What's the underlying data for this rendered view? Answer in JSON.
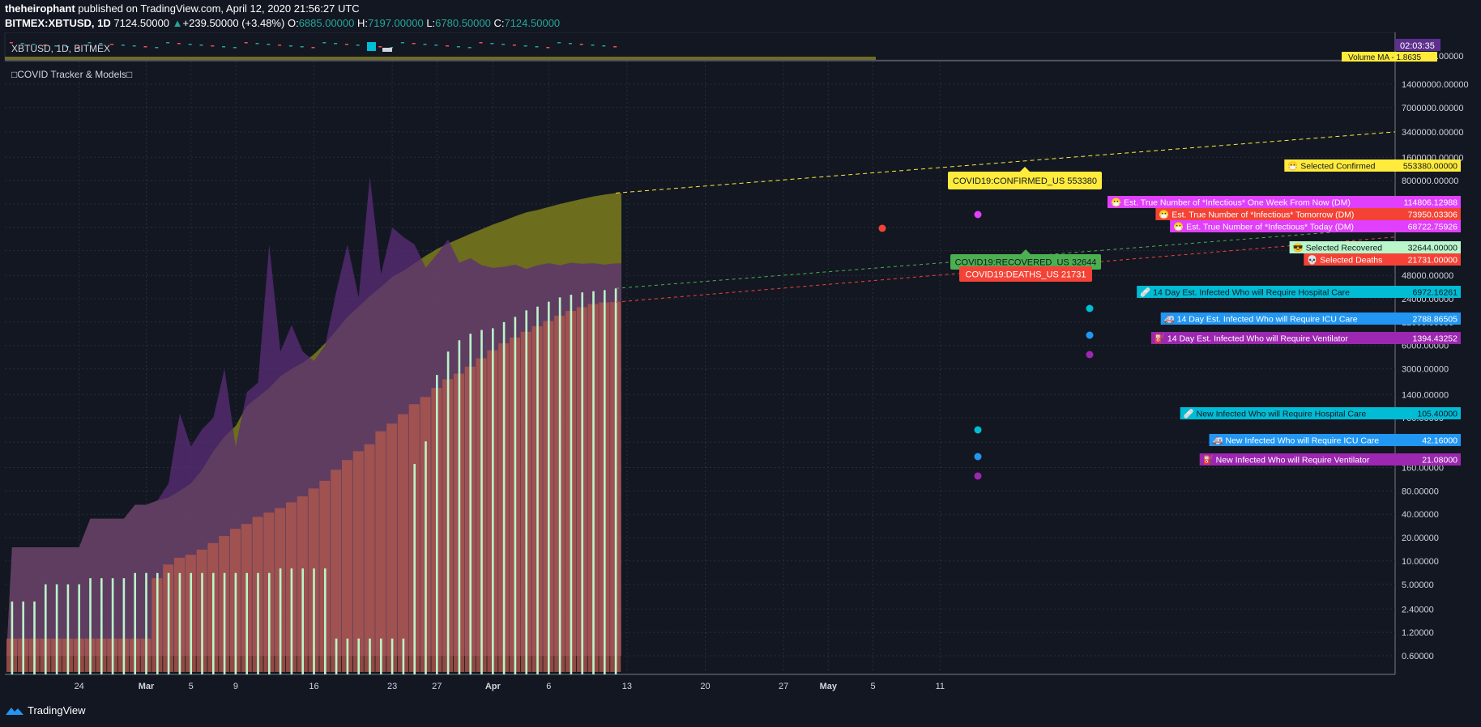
{
  "header": {
    "author": "theheirophant",
    "published": "published on TradingView.com, April 12, 2020 21:56:27 UTC",
    "symbol": "BITMEX:XBTUSD, 1D",
    "price": "7124.50000",
    "change": "+239.50000 (+3.48%)",
    "o_label": "O:",
    "o": "6885.00000",
    "h_label": "H:",
    "h": "7197.00000",
    "l_label": "L:",
    "l": "6780.50000",
    "c_label": "C:",
    "c": "7124.50000"
  },
  "main_pane": {
    "title": "XBTUSD, 1D, BITMEX",
    "time_badge": "02:03:35",
    "volume_badge": "Volume MA - 1.8635",
    "axis_top": "2000000.00000"
  },
  "indicator_pane": {
    "title": "COVID Tracker & Models",
    "y_ticks": [
      "14000000.00000",
      "7000000.00000",
      "3400000.00000",
      "1600000.00000",
      "800000.00000",
      "400000.00000",
      "200000.00000",
      "100000.00000",
      "48000.00000",
      "24000.00000",
      "12000.00000",
      "6000.00000",
      "3000.00000",
      "1400.00000",
      "700.00000",
      "340.00000",
      "160.00000",
      "80.00000",
      "40.00000",
      "20.00000",
      "10.00000",
      "5.00000",
      "2.40000",
      "1.20000",
      "0.60000"
    ]
  },
  "x_axis": {
    "ticks": [
      "24",
      "Mar",
      "5",
      "9",
      "16",
      "23",
      "27",
      "Apr",
      "6",
      "13",
      "20",
      "27",
      "May",
      "5",
      "11"
    ],
    "bold": [
      "Mar",
      "Apr",
      "May"
    ]
  },
  "callouts": [
    {
      "text": "COVID19:CONFIRMED_US 553380",
      "color": "#ffeb3b",
      "text_color": "#131722"
    },
    {
      "text": "COVID19:RECOVERED_US 32644",
      "color": "#4caf50",
      "text_color": "#131722"
    },
    {
      "text": "COVID19:DEATHS_US 21731",
      "color": "#f44336",
      "text_color": "#ffffff"
    }
  ],
  "right_labels": [
    {
      "icon": "😷",
      "text": "Selected Confirmed",
      "value": "553380.00000",
      "color": "#ffeb3b",
      "text_color": "#131722"
    },
    {
      "icon": "😷",
      "text": "Est. True Number of *Infectious* One Week From Now (DM)",
      "value": "114806.12988",
      "color": "#e040fb",
      "text_color": "#ffffff"
    },
    {
      "icon": "😷",
      "text": "Est. True Number of *Infectious* Tomorrow (DM)",
      "value": "73950.03306",
      "color": "#f44336",
      "text_color": "#ffffff"
    },
    {
      "icon": "😷",
      "text": "Est. True Number of *Infectious* Today (DM)",
      "value": "68722.75926",
      "color": "#e040fb",
      "text_color": "#ffffff"
    },
    {
      "icon": "😎",
      "text": "Selected Recovered",
      "value": "32644.00000",
      "color": "#b9f6ca",
      "text_color": "#131722"
    },
    {
      "icon": "💀",
      "text": "Selected Deaths",
      "value": "21731.00000",
      "color": "#f44336",
      "text_color": "#ffffff"
    },
    {
      "icon": "🩹",
      "text": "14 Day Est. Infected Who will Require Hospital Care",
      "value": "6972.16261",
      "color": "#00bcd4",
      "text_color": "#131722"
    },
    {
      "icon": "🚑",
      "text": "14 Day Est. Infected Who will Require ICU Care",
      "value": "2788.86505",
      "color": "#2196f3",
      "text_color": "#ffffff"
    },
    {
      "icon": "⛽",
      "text": "14 Day Est. Infected Who will Require Ventilator",
      "value": "1394.43252",
      "color": "#9c27b0",
      "text_color": "#ffffff"
    },
    {
      "icon": "🩹",
      "text": "New Infected Who will Require Hospital Care",
      "value": "105.40000",
      "color": "#00bcd4",
      "text_color": "#131722"
    },
    {
      "icon": "🚑",
      "text": "New Infected Who will Require ICU Care",
      "value": "42.16000",
      "color": "#2196f3",
      "text_color": "#ffffff"
    },
    {
      "icon": "⛽",
      "text": "New Infected Who will Require Ventilator",
      "value": "21.08000",
      "color": "#9c27b0",
      "text_color": "#ffffff"
    }
  ],
  "footer": {
    "brand": "TradingView"
  },
  "colors": {
    "background": "#131722",
    "confirmed": "#7c7d1c",
    "deaths": "#b0584c",
    "recovered": "#b9f6ca",
    "infectious": "#5b2e78",
    "grid": "#2a2e39",
    "axis_text": "#d1d4dc"
  },
  "chart_data": {
    "type": "area",
    "scale": "log",
    "x_dates": [
      "Feb 18",
      "Feb 19",
      "Feb 20",
      "Feb 21",
      "Feb 22",
      "Feb 23",
      "Feb 24",
      "Feb 25",
      "Feb 26",
      "Feb 27",
      "Feb 28",
      "Feb 29",
      "Mar 1",
      "Mar 2",
      "Mar 3",
      "Mar 4",
      "Mar 5",
      "Mar 6",
      "Mar 7",
      "Mar 8",
      "Mar 9",
      "Mar 10",
      "Mar 11",
      "Mar 12",
      "Mar 13",
      "Mar 14",
      "Mar 15",
      "Mar 16",
      "Mar 17",
      "Mar 18",
      "Mar 19",
      "Mar 20",
      "Mar 21",
      "Mar 22",
      "Mar 23",
      "Mar 24",
      "Mar 25",
      "Mar 26",
      "Mar 27",
      "Mar 28",
      "Mar 29",
      "Mar 30",
      "Mar 31",
      "Apr 1",
      "Apr 2",
      "Apr 3",
      "Apr 4",
      "Apr 5",
      "Apr 6",
      "Apr 7",
      "Apr 8",
      "Apr 9",
      "Apr 10",
      "Apr 11",
      "Apr 12"
    ],
    "series": [
      {
        "name": "COVID19:CONFIRMED_US",
        "values": [
          15,
          15,
          15,
          15,
          15,
          15,
          15,
          35,
          35,
          35,
          35,
          53,
          53,
          60,
          66,
          80,
          100,
          150,
          260,
          400,
          550,
          1000,
          1300,
          1700,
          2400,
          3000,
          3600,
          4600,
          6400,
          9400,
          14000,
          19000,
          26000,
          34000,
          46000,
          55000,
          69000,
          86000,
          105000,
          124000,
          143000,
          165000,
          189000,
          217000,
          244000,
          278000,
          312000,
          335000,
          366000,
          399000,
          432000,
          466000,
          501000,
          528000,
          553380
        ]
      },
      {
        "name": "COVID19:DEATHS_US",
        "values": [
          1,
          1,
          1,
          1,
          1,
          1,
          1,
          1,
          1,
          1,
          1,
          1,
          1,
          6,
          9,
          11,
          12,
          14,
          17,
          21,
          26,
          30,
          37,
          42,
          48,
          57,
          68,
          86,
          108,
          150,
          200,
          260,
          320,
          470,
          590,
          780,
          1050,
          1300,
          1700,
          2200,
          2600,
          3200,
          4100,
          5200,
          6400,
          7600,
          9000,
          10600,
          12400,
          14500,
          16700,
          18700,
          20500,
          21500,
          21731
        ]
      },
      {
        "name": "COVID19:RECOVERED_US",
        "values": [
          3,
          3,
          3,
          5,
          5,
          5,
          5,
          6,
          6,
          6,
          6,
          7,
          7,
          7,
          7,
          7,
          7,
          7,
          7,
          7,
          7,
          7,
          7,
          7,
          8,
          8,
          8,
          8,
          8,
          1,
          1,
          1,
          1,
          1,
          1,
          1,
          178,
          348,
          2500,
          5000,
          7000,
          8500,
          9500,
          10000,
          12000,
          14000,
          17000,
          19000,
          22000,
          25000,
          27000,
          29000,
          30000,
          31000,
          32644
        ]
      },
      {
        "name": "Est. True Number of *Infectious* Today (DM)",
        "values": [
          15,
          15,
          15,
          15,
          15,
          15,
          15,
          35,
          35,
          35,
          35,
          53,
          53,
          60,
          100,
          800,
          300,
          500,
          700,
          3000,
          300,
          1500,
          2000,
          120000,
          5000,
          11000,
          5000,
          3800,
          6000,
          30000,
          120000,
          25000,
          900000,
          50000,
          200000,
          150000,
          120000,
          60000,
          90000,
          140000,
          70000,
          80000,
          65000,
          60000,
          62000,
          66000,
          58000,
          65000,
          69000,
          65000,
          70000,
          68000,
          69000,
          66000,
          68722.75926
        ]
      }
    ]
  }
}
